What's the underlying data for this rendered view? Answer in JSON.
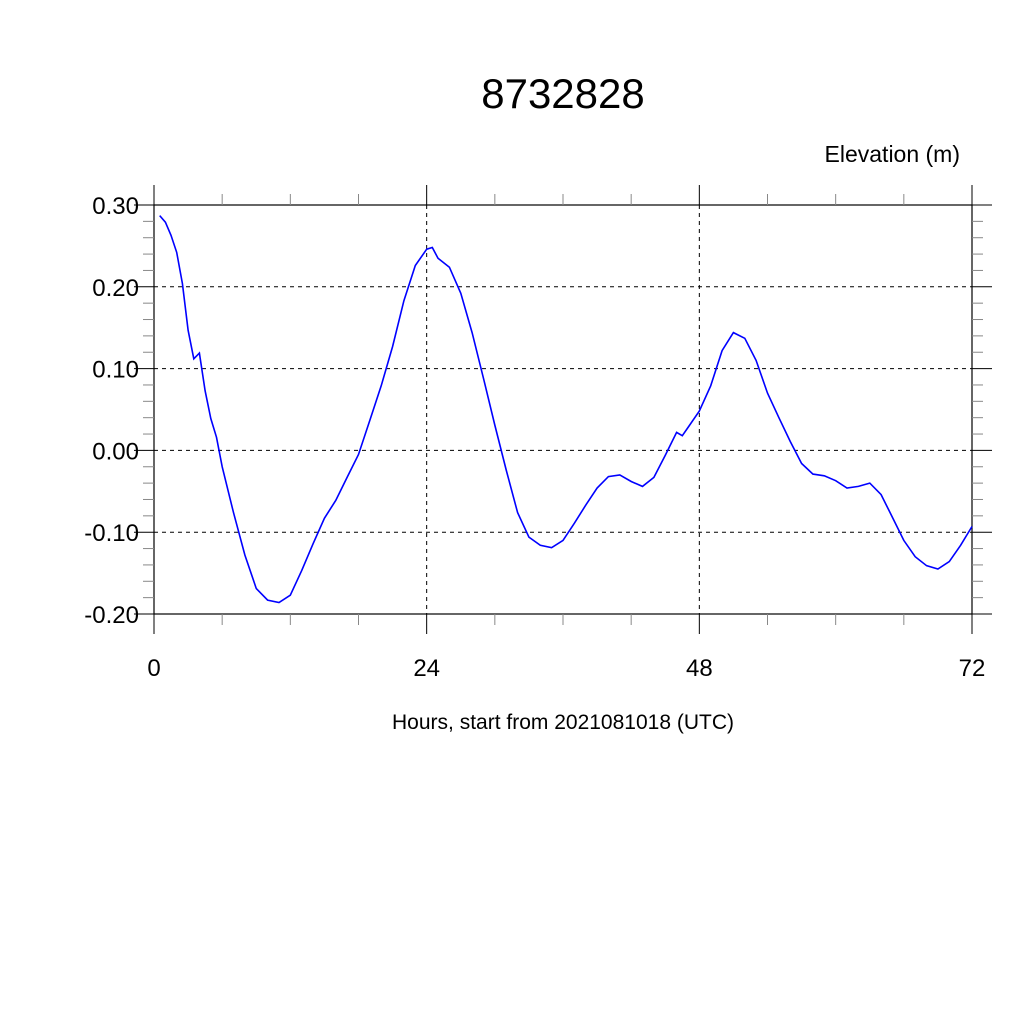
{
  "chart_data": {
    "type": "line",
    "title": "8732828",
    "ylabel": "Elevation (m)",
    "xlabel": "Hours, start from 2021081018 (UTC)",
    "xlim": [
      0,
      72
    ],
    "ylim": [
      -0.2,
      0.3
    ],
    "xticks": [
      0,
      24,
      48,
      72
    ],
    "xtick_labels": [
      "0",
      "24",
      "48",
      "72"
    ],
    "x_minor_step": 6,
    "yticks": [
      0.3,
      0.2,
      0.1,
      0.0,
      -0.1,
      -0.2
    ],
    "ytick_labels": [
      "0.30",
      "0.20",
      "0.10",
      "0.00",
      "-0.10",
      "-0.20"
    ],
    "y_minor_step": 0.02,
    "grid": true,
    "grid_style": "dashed",
    "line_color": "#0000ff",
    "series": [
      {
        "x": [
          0.5,
          1,
          1.5,
          2,
          2.5,
          3,
          3.5,
          4,
          4.5,
          5,
          5.5,
          6,
          7,
          8,
          9,
          10,
          11,
          12,
          13,
          14,
          15,
          16,
          17,
          18,
          19,
          20,
          21,
          22,
          23,
          24,
          24.5,
          25,
          26,
          27,
          28,
          29,
          30,
          31,
          32,
          33,
          34,
          35,
          36,
          37,
          38,
          39,
          40,
          41,
          42,
          43,
          44,
          45,
          46,
          46.5,
          47,
          48,
          49,
          50,
          51,
          52,
          53,
          54,
          55,
          56,
          57,
          58,
          59,
          60,
          61,
          62,
          63,
          64,
          65,
          66,
          67,
          68,
          69,
          70,
          71,
          72
        ],
        "y": [
          0.287,
          0.279,
          0.263,
          0.242,
          0.204,
          0.147,
          0.112,
          0.119,
          0.073,
          0.039,
          0.016,
          -0.02,
          -0.076,
          -0.128,
          -0.169,
          -0.183,
          -0.186,
          -0.177,
          -0.147,
          -0.114,
          -0.083,
          -0.061,
          -0.033,
          -0.005,
          0.037,
          0.079,
          0.127,
          0.183,
          0.226,
          0.246,
          0.248,
          0.235,
          0.224,
          0.192,
          0.144,
          0.088,
          0.031,
          -0.024,
          -0.076,
          -0.106,
          -0.116,
          -0.119,
          -0.11,
          -0.089,
          -0.067,
          -0.046,
          -0.032,
          -0.03,
          -0.038,
          -0.044,
          -0.033,
          -0.006,
          0.022,
          0.018,
          0.028,
          0.048,
          0.079,
          0.122,
          0.144,
          0.137,
          0.11,
          0.07,
          0.04,
          0.011,
          -0.016,
          -0.029,
          -0.031,
          -0.037,
          -0.046,
          -0.044,
          -0.04,
          -0.054,
          -0.082,
          -0.11,
          -0.13,
          -0.141,
          -0.145,
          -0.136,
          -0.116,
          -0.093
        ]
      }
    ]
  }
}
